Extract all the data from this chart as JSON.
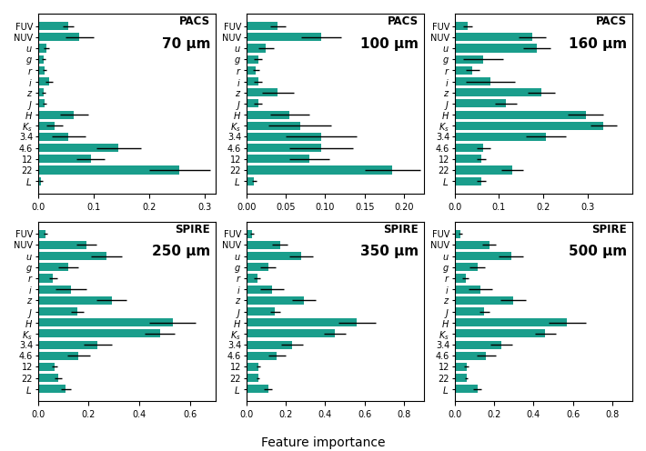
{
  "labels": [
    "FUV",
    "NUV",
    "u",
    "g",
    "r",
    "i",
    "z",
    "J",
    "H",
    "K_s",
    "3.4",
    "4.6",
    "12",
    "22",
    "L."
  ],
  "bar_color": "#1a9e8c",
  "panels": [
    {
      "title_line1": "PACS",
      "title_line2": "70 μm",
      "values": [
        0.055,
        0.075,
        0.015,
        0.01,
        0.012,
        0.02,
        0.01,
        0.012,
        0.065,
        0.03,
        0.055,
        0.145,
        0.095,
        0.255,
        0.005
      ],
      "errors": [
        0.01,
        0.025,
        0.005,
        0.003,
        0.003,
        0.007,
        0.003,
        0.003,
        0.025,
        0.015,
        0.03,
        0.04,
        0.025,
        0.055,
        0.003
      ],
      "xlim": [
        0.0,
        0.32
      ],
      "xticks": [
        0.0,
        0.1,
        0.2,
        0.3
      ]
    },
    {
      "title_line1": "PACS",
      "title_line2": "100 μm",
      "values": [
        0.04,
        0.095,
        0.025,
        0.015,
        0.012,
        0.015,
        0.04,
        0.015,
        0.055,
        0.068,
        0.095,
        0.095,
        0.08,
        0.185,
        0.01
      ],
      "errors": [
        0.01,
        0.025,
        0.01,
        0.005,
        0.004,
        0.005,
        0.02,
        0.005,
        0.025,
        0.04,
        0.045,
        0.04,
        0.025,
        0.035,
        0.003
      ],
      "xlim": [
        0.0,
        0.225
      ],
      "xticks": [
        0.0,
        0.05,
        0.1,
        0.15,
        0.2
      ]
    },
    {
      "title_line1": "PACS",
      "title_line2": "160 μm",
      "values": [
        0.03,
        0.175,
        0.185,
        0.065,
        0.04,
        0.08,
        0.195,
        0.115,
        0.295,
        0.335,
        0.205,
        0.065,
        0.06,
        0.13,
        0.06
      ],
      "errors": [
        0.01,
        0.03,
        0.03,
        0.045,
        0.015,
        0.055,
        0.03,
        0.025,
        0.04,
        0.03,
        0.045,
        0.015,
        0.01,
        0.025,
        0.01
      ],
      "xlim": [
        0.0,
        0.4
      ],
      "xticks": [
        0.0,
        0.1,
        0.2,
        0.3
      ]
    },
    {
      "title_line1": "SPIRE",
      "title_line2": "250 μm",
      "values": [
        0.03,
        0.19,
        0.27,
        0.12,
        0.06,
        0.13,
        0.29,
        0.155,
        0.53,
        0.48,
        0.235,
        0.16,
        0.065,
        0.08,
        0.11
      ],
      "errors": [
        0.008,
        0.04,
        0.06,
        0.04,
        0.015,
        0.06,
        0.06,
        0.025,
        0.09,
        0.06,
        0.055,
        0.045,
        0.01,
        0.015,
        0.02
      ],
      "xlim": [
        0.0,
        0.7
      ],
      "xticks": [
        0.0,
        0.2,
        0.4,
        0.6
      ]
    },
    {
      "title_line1": "SPIRE",
      "title_line2": "350 μm",
      "values": [
        0.03,
        0.17,
        0.28,
        0.11,
        0.055,
        0.13,
        0.29,
        0.145,
        0.56,
        0.45,
        0.23,
        0.155,
        0.06,
        0.06,
        0.11
      ],
      "errors": [
        0.008,
        0.04,
        0.06,
        0.04,
        0.015,
        0.06,
        0.06,
        0.025,
        0.095,
        0.055,
        0.055,
        0.045,
        0.01,
        0.008,
        0.02
      ],
      "xlim": [
        0.0,
        0.9
      ],
      "xticks": [
        0.0,
        0.2,
        0.4,
        0.6,
        0.8
      ]
    },
    {
      "title_line1": "SPIRE",
      "title_line2": "500 μm",
      "values": [
        0.03,
        0.175,
        0.285,
        0.115,
        0.055,
        0.13,
        0.295,
        0.15,
        0.57,
        0.46,
        0.235,
        0.16,
        0.06,
        0.06,
        0.115
      ],
      "errors": [
        0.008,
        0.035,
        0.06,
        0.04,
        0.015,
        0.06,
        0.065,
        0.025,
        0.095,
        0.055,
        0.055,
        0.05,
        0.01,
        0.008,
        0.02
      ],
      "xlim": [
        0.0,
        0.9
      ],
      "xticks": [
        0.0,
        0.2,
        0.4,
        0.6,
        0.8
      ]
    }
  ],
  "xlabel": "Feature importance",
  "figsize": [
    7.1,
    4.96
  ],
  "dpi": 100
}
